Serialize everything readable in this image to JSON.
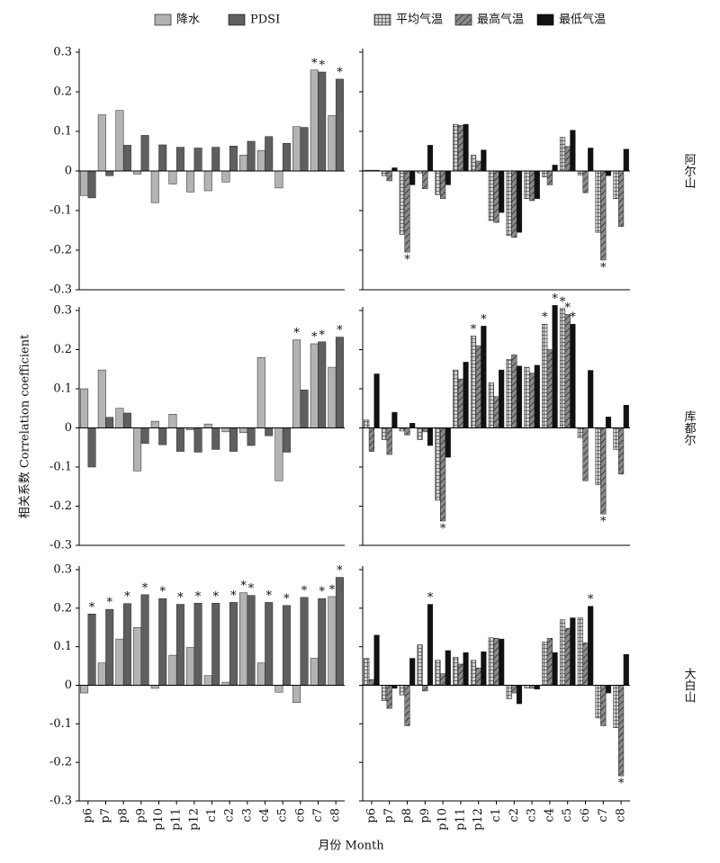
{
  "figure": {
    "xlabel": "月份 Month",
    "ylabel": "相关系数 Correlation coefficient"
  },
  "chart_data": [
    {
      "type": "bar",
      "ylim": [
        -0.3,
        0.3
      ],
      "yticks": [
        -0.3,
        -0.2,
        -0.1,
        0,
        0.1,
        0.2,
        0.3
      ],
      "series": [
        {
          "name": "降水",
          "color": "#b3b3b3",
          "values": [
            -0.062,
            0.142,
            0.153,
            -0.008,
            -0.08,
            -0.033,
            -0.053,
            -0.05,
            -0.028,
            0.04,
            0.052,
            -0.043,
            0.112,
            0.255,
            0.14
          ],
          "significance": [
            null,
            null,
            null,
            null,
            null,
            null,
            null,
            null,
            null,
            null,
            null,
            null,
            null,
            "*",
            null
          ]
        },
        {
          "name": "PDSI",
          "color": "#5f5f5f",
          "values": [
            -0.068,
            -0.012,
            0.065,
            0.09,
            0.066,
            0.06,
            0.058,
            0.06,
            0.063,
            0.075,
            0.087,
            0.07,
            0.11,
            0.25,
            0.232
          ],
          "significance": [
            null,
            null,
            null,
            null,
            null,
            null,
            null,
            null,
            null,
            null,
            null,
            null,
            null,
            "*",
            "*"
          ]
        }
      ]
    },
    {
      "type": "bar",
      "site": "阿尔山",
      "ylim": [
        -0.3,
        0.3
      ],
      "yticks": [
        -0.3,
        -0.2,
        -0.1,
        0,
        0.1,
        0.2,
        0.3
      ],
      "series": [
        {
          "name": "平均气温",
          "color": "#bdbdbd",
          "pattern": "grid",
          "values": [
            0.002,
            -0.012,
            -0.16,
            -0.005,
            -0.06,
            0.118,
            0.04,
            -0.125,
            -0.163,
            -0.07,
            -0.015,
            0.085,
            -0.01,
            -0.155,
            -0.07
          ],
          "significance": [
            null,
            null,
            null,
            null,
            null,
            null,
            null,
            null,
            null,
            null,
            null,
            null,
            null,
            null,
            null
          ]
        },
        {
          "name": "最高气温",
          "color": "#7a7a7a",
          "pattern": "hatch",
          "values": [
            0.002,
            -0.025,
            -0.205,
            -0.045,
            -0.07,
            0.115,
            0.025,
            -0.13,
            -0.168,
            -0.075,
            -0.035,
            0.062,
            -0.055,
            -0.225,
            -0.14
          ],
          "significance": [
            null,
            null,
            "*",
            null,
            null,
            null,
            null,
            null,
            null,
            null,
            null,
            null,
            null,
            "*",
            null
          ]
        },
        {
          "name": "最低气温",
          "color": "#111111",
          "values": [
            0.002,
            0.008,
            -0.035,
            0.065,
            -0.035,
            0.118,
            0.053,
            -0.105,
            -0.155,
            -0.07,
            0.015,
            0.103,
            0.058,
            -0.012,
            0.055
          ],
          "significance": [
            null,
            null,
            null,
            null,
            null,
            null,
            null,
            null,
            null,
            null,
            null,
            null,
            null,
            null,
            null
          ]
        }
      ]
    },
    {
      "type": "bar",
      "ylim": [
        -0.3,
        0.3
      ],
      "yticks": [
        -0.3,
        -0.2,
        -0.1,
        0,
        0.1,
        0.2,
        0.3
      ],
      "series": [
        {
          "name": "降水",
          "color": "#b3b3b3",
          "values": [
            0.1,
            0.148,
            0.05,
            -0.11,
            0.017,
            0.035,
            -0.005,
            0.01,
            -0.01,
            -0.012,
            0.18,
            -0.135,
            0.225,
            0.215,
            0.155
          ],
          "significance": [
            null,
            null,
            null,
            null,
            null,
            null,
            null,
            null,
            null,
            null,
            null,
            null,
            "*",
            "*",
            null
          ]
        },
        {
          "name": "PDSI",
          "color": "#5f5f5f",
          "values": [
            -0.1,
            0.027,
            0.038,
            -0.04,
            -0.043,
            -0.06,
            -0.062,
            -0.055,
            -0.06,
            -0.045,
            -0.02,
            -0.062,
            0.097,
            0.22,
            0.232
          ],
          "significance": [
            null,
            null,
            null,
            null,
            null,
            null,
            null,
            null,
            null,
            null,
            null,
            null,
            null,
            "*",
            "*"
          ]
        }
      ]
    },
    {
      "type": "bar",
      "site": "库都尔",
      "ylim": [
        -0.3,
        0.3
      ],
      "yticks": [
        -0.3,
        -0.2,
        -0.1,
        0,
        0.1,
        0.2,
        0.3
      ],
      "series": [
        {
          "name": "平均气温",
          "color": "#bdbdbd",
          "pattern": "grid",
          "values": [
            0.02,
            -0.03,
            -0.008,
            -0.03,
            -0.185,
            0.148,
            0.235,
            0.115,
            0.175,
            0.155,
            0.265,
            0.305,
            -0.025,
            -0.145,
            -0.055
          ],
          "significance": [
            null,
            null,
            null,
            null,
            null,
            null,
            "*",
            null,
            null,
            null,
            "*",
            "*",
            null,
            null,
            null
          ]
        },
        {
          "name": "最高气温",
          "color": "#7a7a7a",
          "pattern": "hatch",
          "values": [
            -0.06,
            -0.068,
            -0.018,
            -0.01,
            -0.238,
            0.125,
            0.21,
            0.08,
            0.187,
            0.14,
            0.2,
            0.29,
            -0.135,
            -0.22,
            -0.118
          ],
          "significance": [
            null,
            null,
            null,
            null,
            "*",
            null,
            null,
            null,
            null,
            null,
            null,
            "*",
            null,
            "*",
            null
          ]
        },
        {
          "name": "最低气温",
          "color": "#111111",
          "values": [
            0.138,
            0.04,
            0.012,
            -0.045,
            -0.075,
            0.168,
            0.26,
            0.148,
            0.158,
            0.16,
            0.313,
            0.265,
            0.147,
            0.028,
            0.058
          ],
          "significance": [
            null,
            null,
            null,
            null,
            null,
            null,
            "*",
            null,
            null,
            null,
            "*",
            "*",
            null,
            null,
            null
          ]
        }
      ]
    },
    {
      "type": "bar",
      "ylim": [
        -0.3,
        0.3
      ],
      "yticks": [
        -0.3,
        -0.2,
        -0.1,
        0,
        0.1,
        0.2,
        0.3
      ],
      "categories": [
        "p6",
        "p7",
        "p8",
        "p9",
        "p10",
        "p11",
        "p12",
        "c1",
        "c2",
        "c3",
        "c4",
        "c5",
        "c6",
        "c7",
        "c8"
      ],
      "series": [
        {
          "name": "降水",
          "color": "#b3b3b3",
          "values": [
            -0.02,
            0.058,
            0.12,
            0.15,
            -0.008,
            0.078,
            0.098,
            0.025,
            0.008,
            0.24,
            0.058,
            -0.018,
            -0.045,
            0.07,
            0.23
          ],
          "significance": [
            null,
            null,
            null,
            null,
            null,
            null,
            null,
            null,
            null,
            "*",
            null,
            null,
            null,
            null,
            "*"
          ]
        },
        {
          "name": "PDSI",
          "color": "#5f5f5f",
          "values": [
            0.185,
            0.197,
            0.212,
            0.235,
            0.225,
            0.21,
            0.213,
            0.213,
            0.215,
            0.233,
            0.215,
            0.207,
            0.228,
            0.225,
            0.28
          ],
          "significance": [
            "*",
            "*",
            "*",
            "*",
            "*",
            "*",
            "*",
            "*",
            "*",
            "*",
            "*",
            "*",
            "*",
            "*",
            "*"
          ]
        }
      ]
    },
    {
      "type": "bar",
      "site": "大白山",
      "ylim": [
        -0.3,
        0.3
      ],
      "yticks": [
        -0.3,
        -0.2,
        -0.1,
        0,
        0.1,
        0.2,
        0.3
      ],
      "categories": [
        "p6",
        "p7",
        "p8",
        "p9",
        "p10",
        "p11",
        "p12",
        "c1",
        "c2",
        "c3",
        "c4",
        "c5",
        "c6",
        "c7",
        "c8"
      ],
      "series": [
        {
          "name": "平均气温",
          "color": "#bdbdbd",
          "pattern": "grid",
          "values": [
            0.07,
            -0.04,
            -0.025,
            0.105,
            0.065,
            0.073,
            0.065,
            0.123,
            -0.035,
            -0.007,
            0.112,
            0.17,
            0.175,
            -0.085,
            -0.11
          ],
          "significance": [
            null,
            null,
            null,
            null,
            null,
            null,
            null,
            null,
            null,
            null,
            null,
            null,
            null,
            null,
            null
          ]
        },
        {
          "name": "最高气温",
          "color": "#7a7a7a",
          "pattern": "hatch",
          "values": [
            0.015,
            -0.06,
            -0.105,
            -0.015,
            0.03,
            0.055,
            0.045,
            0.122,
            -0.02,
            -0.008,
            0.122,
            0.148,
            0.11,
            -0.105,
            -0.235
          ],
          "significance": [
            null,
            null,
            null,
            null,
            null,
            null,
            null,
            null,
            null,
            null,
            null,
            null,
            null,
            null,
            "*"
          ]
        },
        {
          "name": "最低气温",
          "color": "#111111",
          "values": [
            0.13,
            -0.008,
            0.07,
            0.21,
            0.09,
            0.085,
            0.087,
            0.12,
            -0.048,
            -0.01,
            0.085,
            0.175,
            0.205,
            -0.02,
            0.08
          ],
          "significance": [
            null,
            null,
            null,
            "*",
            null,
            null,
            null,
            null,
            null,
            null,
            null,
            null,
            "*",
            null,
            null
          ]
        }
      ]
    }
  ]
}
